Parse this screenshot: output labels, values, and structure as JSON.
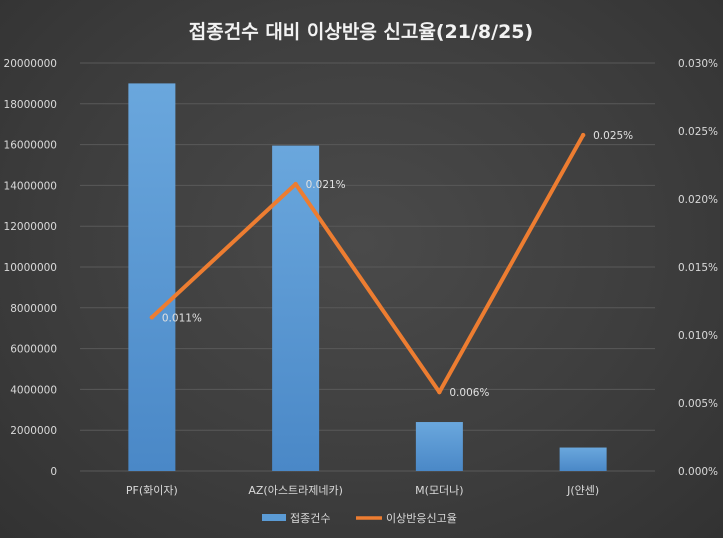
{
  "chart_data": {
    "type": "bar",
    "title": "접종건수 대비 이상반응 신고율(21/8/25)",
    "categories": [
      "PF(화이자)",
      "AZ(아스트라제네카)",
      "M(모더나)",
      "J(얀센)"
    ],
    "series": [
      {
        "name": "접종건수",
        "type": "bar",
        "axis": "left",
        "values": [
          19000000,
          15950000,
          2400000,
          1150000
        ]
      },
      {
        "name": "이상반응신고율",
        "type": "line",
        "axis": "right",
        "values": [
          0.0113,
          0.0211,
          0.0058,
          0.0247
        ],
        "labels": [
          "0.011%",
          "0.021%",
          "0.006%",
          "0.025%"
        ]
      }
    ],
    "y_left": {
      "min": 0,
      "max": 20000000,
      "ticks": [
        0,
        2000000,
        4000000,
        6000000,
        8000000,
        10000000,
        12000000,
        14000000,
        16000000,
        18000000,
        20000000
      ],
      "tick_labels": [
        "0",
        "2000000",
        "4000000",
        "6000000",
        "8000000",
        "10000000",
        "12000000",
        "14000000",
        "16000000",
        "18000000",
        "20000000"
      ]
    },
    "y_right": {
      "min": 0,
      "max": 0.03,
      "ticks": [
        0,
        0.005,
        0.01,
        0.015,
        0.02,
        0.025,
        0.03
      ],
      "tick_labels": [
        "0.000%",
        "0.005%",
        "0.010%",
        "0.015%",
        "0.020%",
        "0.025%",
        "0.030%"
      ]
    },
    "grid": true,
    "legend_position": "bottom",
    "colors": {
      "bar": "#5b9bd5",
      "line": "#ed7d31",
      "grid": "#595959"
    }
  }
}
